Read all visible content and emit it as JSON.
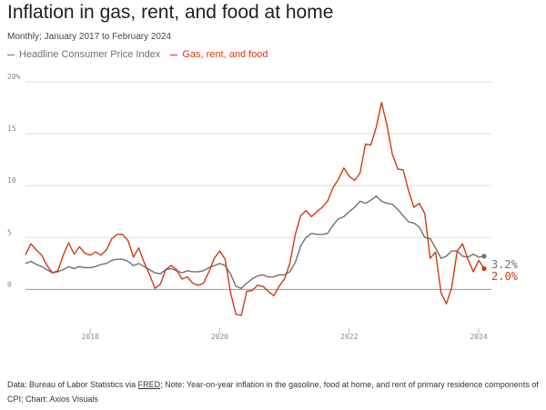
{
  "header": {
    "title": "Inflation in gas, rent, and food at home",
    "subtitle": "Monthly; January 2017 to February 2024"
  },
  "legend": [
    {
      "label": "Headline Consumer Price Index",
      "color": "#707070"
    },
    {
      "label": "Gas, rent, and food",
      "color": "#d23a12"
    }
  ],
  "footer": {
    "prefix": "Data: Bureau of Labor Statistics via ",
    "link": "FRED",
    "suffix": "; Note: Year-on-year inflation in the gasoline, food at home, and rent of primary residence components of CPI; Chart: Axios Visuals"
  },
  "chart_data": {
    "type": "line",
    "title": "Inflation in gas, rent, and food at home",
    "x_start": "2017-01",
    "x_end": "2024-02",
    "xlabel": "",
    "ylabel": "",
    "ylim": [
      -4,
      20
    ],
    "y_ticks": [
      0,
      5,
      10,
      15,
      20
    ],
    "y_tick_labels": [
      "0",
      "5",
      "10",
      "15",
      "20%"
    ],
    "x_ticks": [
      2018,
      2020,
      2022,
      2024
    ],
    "x_tick_labels": [
      "2018",
      "2020",
      "2022",
      "2024"
    ],
    "series": [
      {
        "name": "Headline Consumer Price Index",
        "color": "#707070",
        "end_label": "3.2%",
        "values": [
          2.5,
          2.7,
          2.4,
          2.2,
          1.9,
          1.6,
          1.7,
          1.9,
          2.2,
          2.0,
          2.2,
          2.1,
          2.1,
          2.2,
          2.4,
          2.5,
          2.8,
          2.9,
          2.9,
          2.7,
          2.3,
          2.5,
          2.2,
          1.9,
          1.6,
          1.5,
          1.9,
          2.0,
          1.8,
          1.6,
          1.8,
          1.7,
          1.7,
          1.8,
          2.1,
          2.3,
          2.5,
          2.3,
          1.5,
          0.3,
          0.1,
          0.6,
          1.0,
          1.3,
          1.4,
          1.2,
          1.2,
          1.4,
          1.4,
          1.7,
          2.6,
          4.2,
          5.0,
          5.4,
          5.3,
          5.3,
          5.4,
          6.2,
          6.8,
          7.0,
          7.5,
          7.9,
          8.5,
          8.3,
          8.6,
          9.0,
          8.5,
          8.3,
          8.2,
          7.7,
          7.1,
          6.5,
          6.4,
          6.0,
          5.0,
          4.9,
          4.0,
          3.0,
          3.2,
          3.7,
          3.7,
          3.2,
          3.1,
          3.4,
          3.1,
          3.2
        ]
      },
      {
        "name": "Gas, rent, and food",
        "color": "#d23a12",
        "end_label": "2.0%",
        "values": [
          3.3,
          4.4,
          3.8,
          3.3,
          2.3,
          1.6,
          1.8,
          3.3,
          4.5,
          3.4,
          4.1,
          3.5,
          3.3,
          3.6,
          3.3,
          3.8,
          4.9,
          5.3,
          5.3,
          4.7,
          3.1,
          4.0,
          2.6,
          1.4,
          0.1,
          0.5,
          1.9,
          2.3,
          1.9,
          1.0,
          1.2,
          0.6,
          0.4,
          0.6,
          1.7,
          3.0,
          3.7,
          2.9,
          -0.3,
          -2.4,
          -2.5,
          -0.2,
          -0.1,
          0.4,
          0.3,
          -0.2,
          -0.6,
          0.3,
          1.0,
          2.5,
          5.3,
          7.1,
          7.6,
          7.0,
          7.5,
          7.9,
          8.5,
          9.8,
          10.6,
          11.7,
          10.9,
          10.5,
          11.2,
          14.0,
          13.9,
          15.6,
          18.0,
          15.8,
          13.0,
          11.6,
          11.5,
          9.5,
          7.9,
          8.3,
          7.3,
          3.0,
          3.6,
          -0.3,
          -1.4,
          0.2,
          3.7,
          4.4,
          2.9,
          1.7,
          2.8,
          2.0
        ]
      }
    ]
  }
}
